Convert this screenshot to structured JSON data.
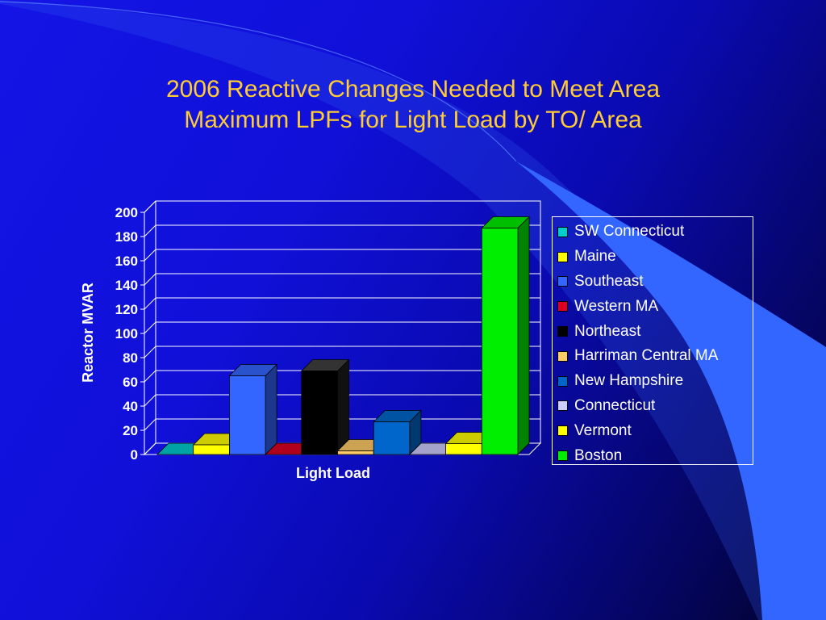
{
  "title": {
    "line1": "2006 Reactive Changes Needed to Meet Area",
    "line2": "Maximum LPFs for Light Load by TO/ Area"
  },
  "chart_data": {
    "type": "bar",
    "categories": [
      "Light Load"
    ],
    "xlabel": "Light Load",
    "ylabel": "Reactor MVAR",
    "ylim": [
      0,
      200
    ],
    "yticks": [
      0,
      20,
      40,
      60,
      80,
      100,
      120,
      140,
      160,
      180,
      200
    ],
    "grid": true,
    "legend_position": "right",
    "series": [
      {
        "name": "SW Connecticut",
        "values": [
          0
        ],
        "color": "#00cccc"
      },
      {
        "name": "Maine",
        "values": [
          8
        ],
        "color": "#ffff00"
      },
      {
        "name": "Southeast",
        "values": [
          65
        ],
        "color": "#3366ff"
      },
      {
        "name": "Western MA",
        "values": [
          0
        ],
        "color": "#dd0022"
      },
      {
        "name": "Northeast",
        "values": [
          69
        ],
        "color": "#000000"
      },
      {
        "name": "Harriman Central MA",
        "values": [
          3
        ],
        "color": "#ffcc66"
      },
      {
        "name": "New Hampshire",
        "values": [
          27
        ],
        "color": "#0066cc"
      },
      {
        "name": "Connecticut",
        "values": [
          0
        ],
        "color": "#ccccff"
      },
      {
        "name": "Vermont",
        "values": [
          9
        ],
        "color": "#ffff00"
      },
      {
        "name": "Boston",
        "values": [
          187
        ],
        "color": "#00ee00"
      }
    ]
  }
}
